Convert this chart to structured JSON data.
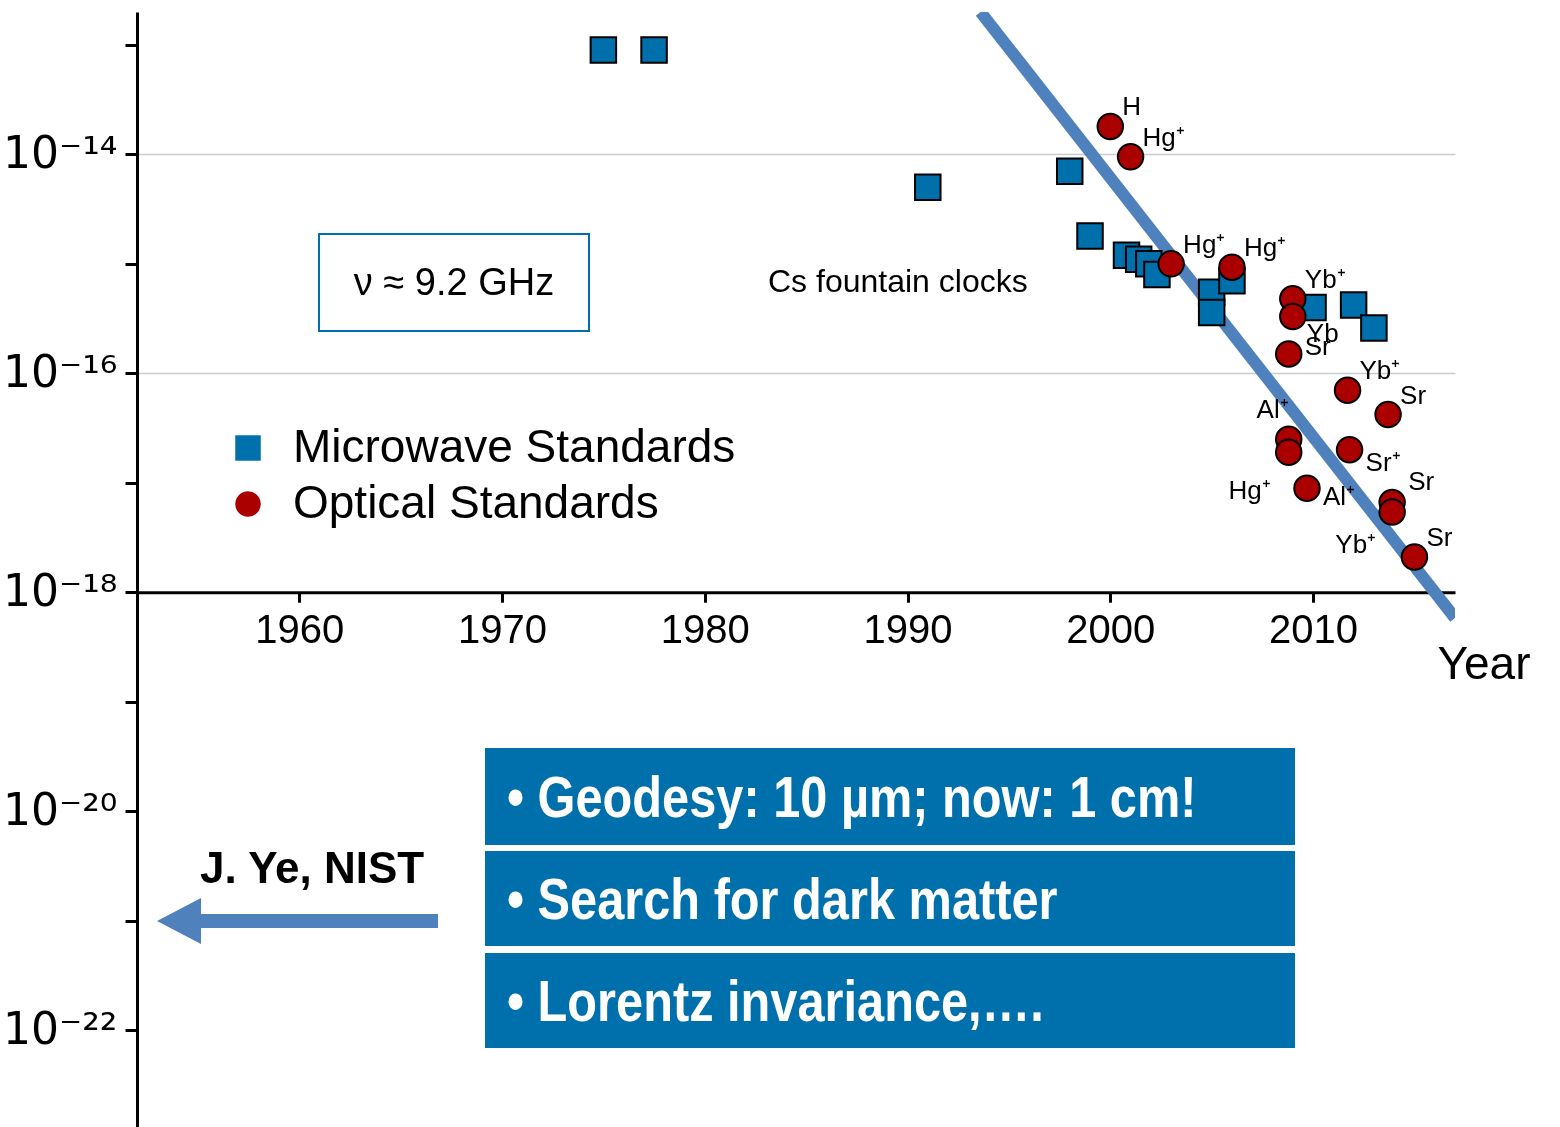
{
  "chart_data": {
    "type": "scatter",
    "xlabel": "Year",
    "xlim": [
      1952,
      2017
    ],
    "xticks": [
      1960,
      1970,
      1980,
      1990,
      2000,
      2010
    ],
    "ylim": [
      1.3e-23,
      2e-13
    ],
    "log": "y",
    "yticks": [
      {
        "value": 1e-13,
        "label": null
      },
      {
        "value": 1e-14,
        "label": "10⁻¹⁴"
      },
      {
        "value": 1e-15,
        "label": null
      },
      {
        "value": 1e-16,
        "label": "10⁻¹⁶"
      },
      {
        "value": 1e-17,
        "label": null
      },
      {
        "value": 1e-18,
        "label": "10⁻¹⁸"
      },
      {
        "value": 1e-19,
        "label": null
      },
      {
        "value": 1e-20,
        "label": "10⁻²⁰"
      },
      {
        "value": 1e-21,
        "label": null
      },
      {
        "value": 1e-22,
        "label": "10⁻²²"
      }
    ],
    "grid": "y",
    "legend": "left",
    "series": [
      {
        "type": "line",
        "color": "#4f81bd",
        "x": [
          1993.6,
          2017
        ],
        "values": [
          2e-13,
          5.8e-19
        ]
      },
      {
        "name": "Microwave Standards",
        "color": "#0070ac",
        "marker": "square",
        "x": [
          1975,
          1977.5,
          1991,
          1998,
          1999,
          2000.8,
          2001.4,
          2001.9,
          2002.3,
          2005,
          2005,
          2006,
          2010,
          2012,
          2013
        ],
        "values": [
          9e-14,
          9e-14,
          5e-15,
          7e-15,
          1.8e-15,
          1.2e-15,
          1.1e-15,
          1e-15,
          8e-16,
          5.5e-16,
          3.6e-16,
          7e-16,
          4e-16,
          4.2e-16,
          2.6e-16
        ]
      },
      {
        "name": "Optical Standards",
        "color": "#aa0000",
        "marker": "circle",
        "x": [
          2000,
          2001,
          2003,
          2006,
          2009,
          2009,
          2008.8,
          2011.7,
          2013.7,
          2008.8,
          2008.8,
          2009.7,
          2011.8,
          2013.9,
          2013.9,
          2015
        ],
        "values": [
          1.8e-14,
          9.5e-15,
          1e-15,
          9.3e-16,
          4.8e-16,
          3.3e-16,
          1.5e-16,
          7e-17,
          4.2e-17,
          2.5e-17,
          1.9e-17,
          8.9e-18,
          2e-17,
          6.6e-18,
          5.4e-18,
          2.1e-18
        ],
        "value_labels": [
          "H",
          "Hg⁺",
          "Hg⁺",
          "Hg⁺",
          "Yb⁺",
          "Yb",
          "Sr",
          "Yb⁺",
          "Sr",
          "Al⁺",
          "Hg⁺",
          "Al⁺",
          "Sr⁺",
          "Sr",
          "Yb⁺",
          "Sr"
        ]
      }
    ],
    "annotations": [
      "ν ≈ 9.2 GHz",
      "Cs fountain clocks",
      "J. Ye, NIST",
      "• Geodesy: 10 µm; now: 1 cm!",
      "• Search for dark matter",
      "• Lorentz invariance,…."
    ]
  }
}
